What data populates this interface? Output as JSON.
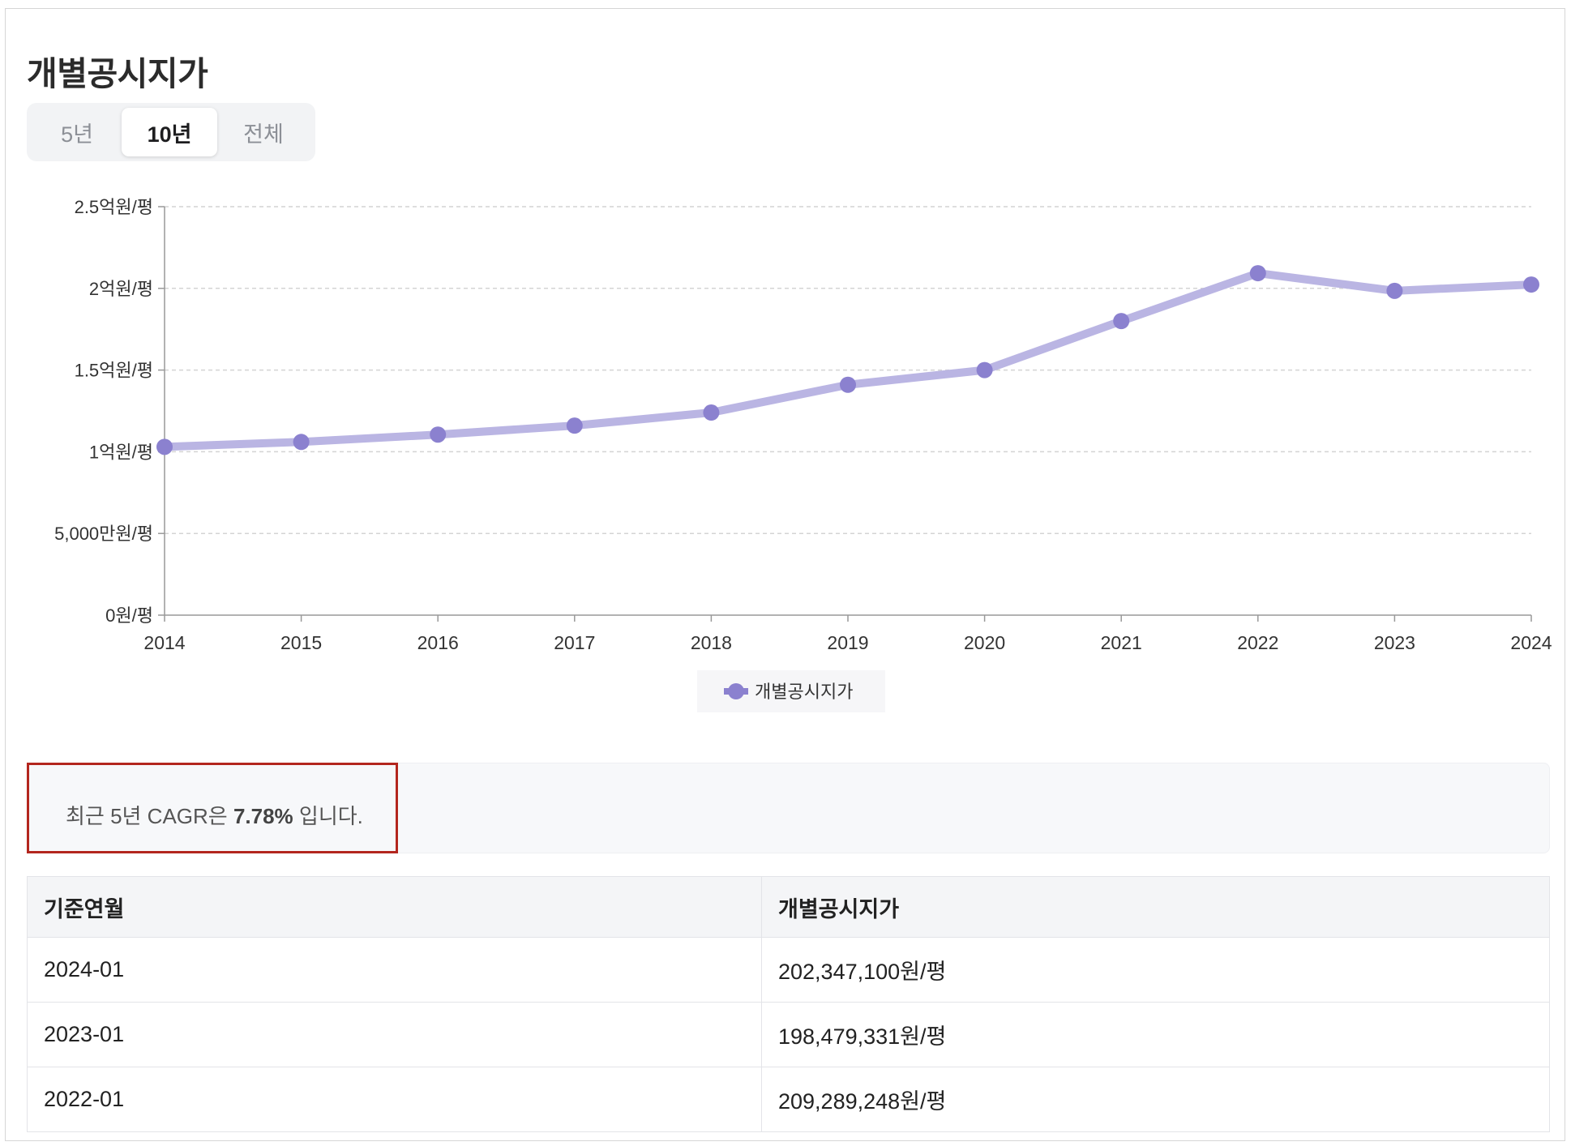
{
  "page": {
    "title": "개별공시지가"
  },
  "tabs": [
    {
      "label": "5년",
      "active": false
    },
    {
      "label": "10년",
      "active": true
    },
    {
      "label": "전체",
      "active": false
    }
  ],
  "chart_data": {
    "type": "line",
    "title": "",
    "xlabel": "",
    "ylabel": "",
    "x": [
      "2014",
      "2015",
      "2016",
      "2017",
      "2018",
      "2019",
      "2020",
      "2021",
      "2022",
      "2023",
      "2024"
    ],
    "series": [
      {
        "name": "개별공시지가",
        "values": [
          103000000,
          106000000,
          110500000,
          116000000,
          124000000,
          141000000,
          150000000,
          180000000,
          209289248,
          198479331,
          202347100
        ]
      }
    ],
    "ylim": [
      0,
      250000000
    ],
    "yticks": [
      0,
      50000000,
      100000000,
      150000000,
      200000000,
      250000000
    ],
    "ytick_labels": [
      "0원/평",
      "5,000만원/평",
      "1억원/평",
      "1.5억원/평",
      "2억원/평",
      "2.5억원/평"
    ],
    "grid": true,
    "legend_position": "bottom-center",
    "colors": {
      "line": "#bab5e3",
      "marker": "#8b81cf"
    }
  },
  "cagr": {
    "prefix": "최근 5년 CAGR은 ",
    "value": "7.78%",
    "suffix": " 입니다."
  },
  "table": {
    "headers": [
      "기준연월",
      "개별공시지가"
    ],
    "rows": [
      [
        "2024-01",
        "202,347,100원/평"
      ],
      [
        "2023-01",
        "198,479,331원/평"
      ],
      [
        "2022-01",
        "209,289,248원/평"
      ]
    ]
  }
}
